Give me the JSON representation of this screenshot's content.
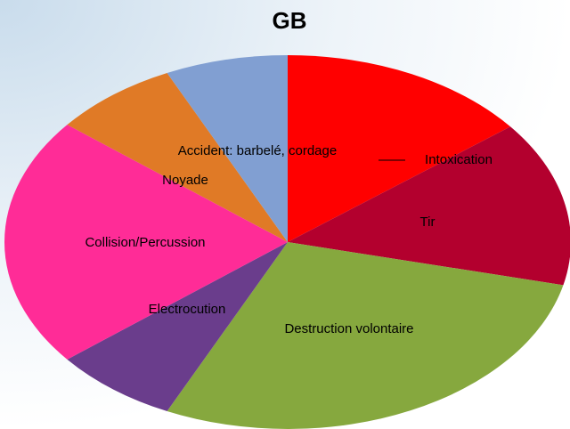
{
  "chart_data": {
    "type": "pie",
    "title": "GB",
    "categories": [
      "Intoxication",
      "Tir",
      "Destruction volontaire",
      "Electrocution",
      "Collision/Percussion",
      "Noyade",
      "Accident: barbelé, cordage"
    ],
    "values": [
      14.4,
      14.3,
      28.3,
      7.2,
      21.6,
      7.2,
      7.0
    ],
    "colors": [
      "#ff0000",
      "#b3002e",
      "#86a83e",
      "#6a3d8c",
      "#ff2c97",
      "#e07a26",
      "#819fd2"
    ]
  }
}
